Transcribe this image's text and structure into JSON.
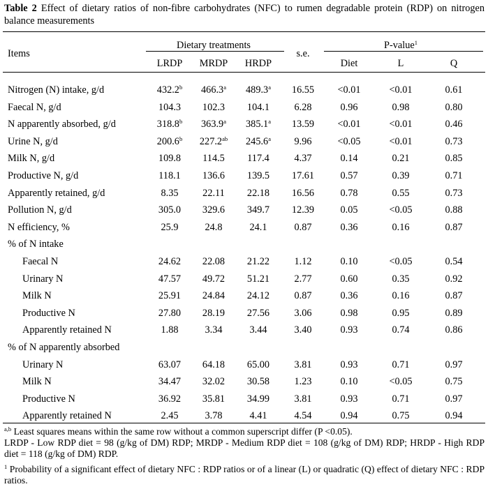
{
  "caption": {
    "label": "Table 2",
    "text": "Effect of dietary ratios of non-fibre carbohydrates (NFC) to rumen degradable protein (RDP) on nitrogen balance measurements"
  },
  "header": {
    "items": "Items",
    "dietary_treatments": "Dietary treatments",
    "se": "s.e.",
    "pvalue": "P-value",
    "pvalue_sup": "1",
    "cols": [
      "LRDP",
      "MRDP",
      "HRDP"
    ],
    "pcols": [
      "Diet",
      "L",
      "Q"
    ]
  },
  "rows": [
    {
      "label": "Nitrogen (N) intake, g/d",
      "indent": false,
      "v": [
        [
          "432.2",
          "b"
        ],
        [
          "466.3",
          "a"
        ],
        [
          "489.3",
          "a"
        ]
      ],
      "se": "16.55",
      "p": [
        "<0.01",
        "<0.01",
        "0.61"
      ]
    },
    {
      "label": "Faecal N, g/d",
      "indent": false,
      "v": [
        [
          "104.3",
          ""
        ],
        [
          "102.3",
          ""
        ],
        [
          "104.1",
          ""
        ]
      ],
      "se": "6.28",
      "p": [
        "0.96",
        "0.98",
        "0.80"
      ]
    },
    {
      "label": "N apparently absorbed, g/d",
      "indent": false,
      "v": [
        [
          "318.8",
          "b"
        ],
        [
          "363.9",
          "a"
        ],
        [
          "385.1",
          "a"
        ]
      ],
      "se": "13.59",
      "p": [
        "<0.01",
        "<0.01",
        "0.46"
      ]
    },
    {
      "label": "Urine N, g/d",
      "indent": false,
      "v": [
        [
          "200.6",
          "b"
        ],
        [
          "227.2",
          "ab"
        ],
        [
          "245.6",
          "a"
        ]
      ],
      "se": "9.96",
      "p": [
        "<0.05",
        "<0.01",
        "0.73"
      ]
    },
    {
      "label": "Milk N, g/d",
      "indent": false,
      "v": [
        [
          "109.8",
          ""
        ],
        [
          "114.5",
          ""
        ],
        [
          "117.4",
          ""
        ]
      ],
      "se": "4.37",
      "p": [
        "0.14",
        "0.21",
        "0.85"
      ]
    },
    {
      "label": "Productive N, g/d",
      "indent": false,
      "v": [
        [
          "118.1",
          ""
        ],
        [
          "136.6",
          ""
        ],
        [
          "139.5",
          ""
        ]
      ],
      "se": "17.61",
      "p": [
        "0.57",
        "0.39",
        "0.71"
      ]
    },
    {
      "label": "Apparently retained, g/d",
      "indent": false,
      "v": [
        [
          "8.35",
          ""
        ],
        [
          "22.11",
          ""
        ],
        [
          "22.18",
          ""
        ]
      ],
      "se": "16.56",
      "p": [
        "0.78",
        "0.55",
        "0.73"
      ]
    },
    {
      "label": "Pollution N, g/d",
      "indent": false,
      "v": [
        [
          "305.0",
          ""
        ],
        [
          "329.6",
          ""
        ],
        [
          "349.7",
          ""
        ]
      ],
      "se": "12.39",
      "p": [
        "0.05",
        "<0.05",
        "0.88"
      ]
    },
    {
      "label": "N efficiency, %",
      "indent": false,
      "v": [
        [
          "25.9",
          ""
        ],
        [
          "24.8",
          ""
        ],
        [
          "24.1",
          ""
        ]
      ],
      "se": "0.87",
      "p": [
        "0.36",
        "0.16",
        "0.87"
      ]
    },
    {
      "label": "% of N intake",
      "indent": false,
      "v": [
        [
          "",
          ""
        ],
        [
          "",
          ""
        ],
        [
          "",
          ""
        ]
      ],
      "se": "",
      "p": [
        "",
        "",
        ""
      ]
    },
    {
      "label": "Faecal N",
      "indent": true,
      "v": [
        [
          "24.62",
          ""
        ],
        [
          "22.08",
          ""
        ],
        [
          "21.22",
          ""
        ]
      ],
      "se": "1.12",
      "p": [
        "0.10",
        "<0.05",
        "0.54"
      ]
    },
    {
      "label": "Urinary N",
      "indent": true,
      "v": [
        [
          "47.57",
          ""
        ],
        [
          "49.72",
          ""
        ],
        [
          "51.21",
          ""
        ]
      ],
      "se": "2.77",
      "p": [
        "0.60",
        "0.35",
        "0.92"
      ]
    },
    {
      "label": "Milk N",
      "indent": true,
      "v": [
        [
          "25.91",
          ""
        ],
        [
          "24.84",
          ""
        ],
        [
          "24.12",
          ""
        ]
      ],
      "se": "0.87",
      "p": [
        "0.36",
        "0.16",
        "0.87"
      ]
    },
    {
      "label": "Productive N",
      "indent": true,
      "v": [
        [
          "27.80",
          ""
        ],
        [
          "28.19",
          ""
        ],
        [
          "27.56",
          ""
        ]
      ],
      "se": "3.06",
      "p": [
        "0.98",
        "0.95",
        "0.89"
      ]
    },
    {
      "label": "Apparently retained N",
      "indent": true,
      "v": [
        [
          "1.88",
          ""
        ],
        [
          "3.34",
          ""
        ],
        [
          "3.44",
          ""
        ]
      ],
      "se": "3.40",
      "p": [
        "0.93",
        "0.74",
        "0.86"
      ]
    },
    {
      "label": "% of N apparently absorbed",
      "indent": false,
      "v": [
        [
          "",
          ""
        ],
        [
          "",
          ""
        ],
        [
          "",
          ""
        ]
      ],
      "se": "",
      "p": [
        "",
        "",
        ""
      ]
    },
    {
      "label": "Urinary N",
      "indent": true,
      "v": [
        [
          "63.07",
          ""
        ],
        [
          "64.18",
          ""
        ],
        [
          "65.00",
          ""
        ]
      ],
      "se": "3.81",
      "p": [
        "0.93",
        "0.71",
        "0.97"
      ]
    },
    {
      "label": "Milk N",
      "indent": true,
      "v": [
        [
          "34.47",
          ""
        ],
        [
          "32.02",
          ""
        ],
        [
          "30.58",
          ""
        ]
      ],
      "se": "1.23",
      "p": [
        "0.10",
        "<0.05",
        "0.75"
      ]
    },
    {
      "label": "Productive N",
      "indent": true,
      "v": [
        [
          "36.92",
          ""
        ],
        [
          "35.81",
          ""
        ],
        [
          "34.99",
          ""
        ]
      ],
      "se": "3.81",
      "p": [
        "0.93",
        "0.71",
        "0.97"
      ]
    },
    {
      "label": "Apparently retained N",
      "indent": true,
      "v": [
        [
          "2.45",
          ""
        ],
        [
          "3.78",
          ""
        ],
        [
          "4.41",
          ""
        ]
      ],
      "se": "4.54",
      "p": [
        "0.94",
        "0.75",
        "0.94"
      ]
    }
  ],
  "footnotes": {
    "f1_sup": "a,b",
    "f1": "Least squares means within the same row without a common superscript differ (P <0.05).",
    "f2": "LRDP - Low RDP diet = 98 (g/kg of DM) RDP; MRDP - Medium RDP diet = 108 (g/kg of DM) RDP; HRDP - High RDP diet = 118 (g/kg of DM) RDP.",
    "f3_sup": "1",
    "f3": "Probability of a significant effect of dietary NFC : RDP ratios or of a linear (L) or quadratic (Q) effect of dietary NFC : RDP ratios."
  }
}
